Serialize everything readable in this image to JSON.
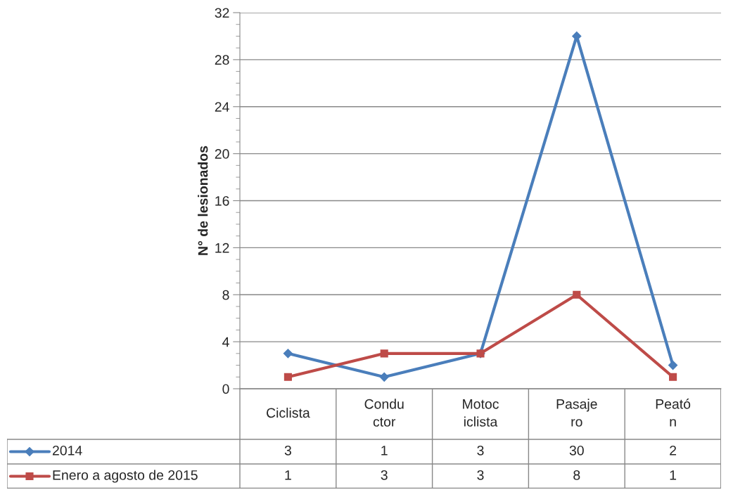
{
  "chart_data": {
    "type": "line",
    "ylabel": "N° de lesionados",
    "categories": [
      "Ciclista",
      "Condu\nctor",
      "Motoc\niclista",
      "Pasaje\nro",
      "Peató\nn"
    ],
    "series": [
      {
        "name": "2014",
        "color": "#4a7ebb",
        "values": [
          3,
          1,
          3,
          30,
          2
        ],
        "marker": "diamond"
      },
      {
        "name": "Enero a agosto de 2015",
        "color": "#be4b48",
        "values": [
          1,
          3,
          3,
          8,
          1
        ],
        "marker": "square"
      }
    ],
    "ylim": [
      0,
      32
    ],
    "yticks": [
      0,
      4,
      8,
      12,
      16,
      20,
      24,
      28,
      32
    ],
    "grid": "y",
    "legend": "bottom",
    "data_labels": true,
    "line_style": "solid"
  }
}
